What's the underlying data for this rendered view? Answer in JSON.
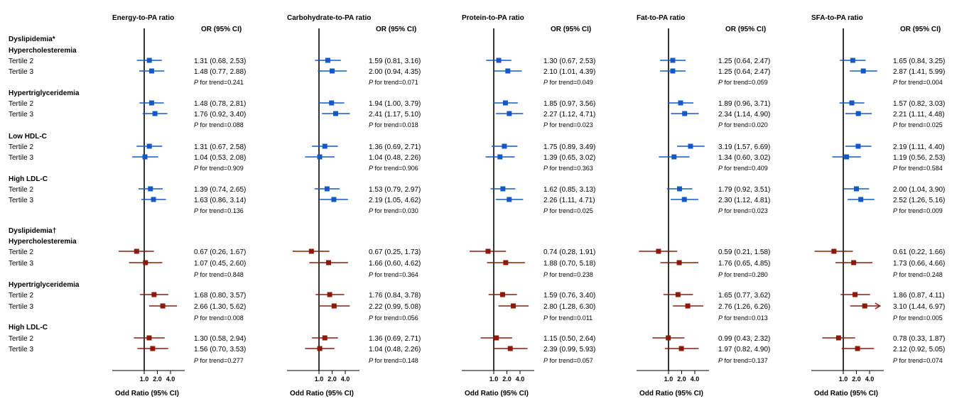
{
  "chart_data": {
    "type": "forest",
    "x_scale": "log2",
    "x_ticks": [
      "1.0",
      "2.0",
      "4.0"
    ],
    "xlabel": "Odd Ratio (95% CI)",
    "ci_column_header": "OR (95% CI)",
    "colors": {
      "model1": "#1458c8",
      "model2": "#8b1a0a"
    },
    "sections": [
      {
        "label": "Dyslipidemia*",
        "model": "model1",
        "subgroups": [
          {
            "label": "Hypercholesteremia"
          },
          {
            "label": "Hypertriglyceridemia"
          },
          {
            "label": "Low HDL-C"
          },
          {
            "label": "High LDL-C"
          }
        ]
      },
      {
        "label": "Dyslipidemia†",
        "model": "model2",
        "subgroups": [
          {
            "label": "Hypercholesteremia"
          },
          {
            "label": "Hypertriglyceridemia"
          },
          {
            "label": "High LDL-C"
          }
        ]
      }
    ],
    "row_labels": [
      "Tertile 2",
      "Tertile 3"
    ],
    "p_label": "P",
    "p_suffix": " for trend=",
    "panels": [
      {
        "title": "Energy-to-PA ratio",
        "data": [
          [
            [
              1.31,
              0.68,
              2.53
            ],
            [
              1.48,
              0.77,
              2.88
            ],
            "0.241"
          ],
          [
            [
              1.48,
              0.78,
              2.81
            ],
            [
              1.76,
              0.92,
              3.4
            ],
            "0.088"
          ],
          [
            [
              1.31,
              0.67,
              2.58
            ],
            [
              1.04,
              0.53,
              2.08
            ],
            "0.909"
          ],
          [
            [
              1.39,
              0.74,
              2.65
            ],
            [
              1.63,
              0.86,
              3.14
            ],
            "0.136"
          ],
          [
            [
              0.67,
              0.26,
              1.67
            ],
            [
              1.07,
              0.45,
              2.6
            ],
            "0.848"
          ],
          [
            [
              1.68,
              0.8,
              3.57
            ],
            [
              2.66,
              1.3,
              5.62
            ],
            "0.008"
          ],
          [
            [
              1.3,
              0.58,
              2.94
            ],
            [
              1.56,
              0.7,
              3.53
            ],
            "0.277"
          ]
        ]
      },
      {
        "title": "Carbohydrate-to-PA ratio",
        "data": [
          [
            [
              1.59,
              0.81,
              3.16
            ],
            [
              2.0,
              0.94,
              4.35
            ],
            "0.071"
          ],
          [
            [
              1.94,
              1.0,
              3.79
            ],
            [
              2.41,
              1.17,
              5.1
            ],
            "0.018"
          ],
          [
            [
              1.36,
              0.69,
              2.71
            ],
            [
              1.04,
              0.48,
              2.26
            ],
            "0.906"
          ],
          [
            [
              1.53,
              0.79,
              2.97
            ],
            [
              2.19,
              1.05,
              4.62
            ],
            "0.030"
          ],
          [
            [
              0.67,
              0.25,
              1.73
            ],
            [
              1.66,
              0.6,
              4.62
            ],
            "0.364"
          ],
          [
            [
              1.76,
              0.84,
              3.78
            ],
            [
              2.22,
              0.99,
              5.08
            ],
            "0.056"
          ],
          [
            [
              1.36,
              0.69,
              2.71
            ],
            [
              1.04,
              0.48,
              2.26
            ],
            "0.148"
          ]
        ]
      },
      {
        "title": "Protein-to-PA ratio",
        "data": [
          [
            [
              1.3,
              0.67,
              2.53
            ],
            [
              2.1,
              1.01,
              4.39
            ],
            "0.049"
          ],
          [
            [
              1.85,
              0.97,
              3.56
            ],
            [
              2.27,
              1.12,
              4.71
            ],
            "0.023"
          ],
          [
            [
              1.75,
              0.89,
              3.49
            ],
            [
              1.39,
              0.65,
              3.02
            ],
            "0.363"
          ],
          [
            [
              1.62,
              0.85,
              3.13
            ],
            [
              2.26,
              1.11,
              4.71
            ],
            "0.025"
          ],
          [
            [
              0.74,
              0.28,
              1.91
            ],
            [
              1.88,
              0.7,
              5.18
            ],
            "0.238"
          ],
          [
            [
              1.59,
              0.76,
              3.4
            ],
            [
              2.8,
              1.28,
              6.3
            ],
            "0.011"
          ],
          [
            [
              1.15,
              0.5,
              2.64
            ],
            [
              2.39,
              0.99,
              5.93
            ],
            "0.057"
          ]
        ]
      },
      {
        "title": "Fat-to-PA ratio",
        "data": [
          [
            [
              1.25,
              0.64,
              2.47
            ],
            [
              1.25,
              0.64,
              2.47
            ],
            "0.059"
          ],
          [
            [
              1.89,
              0.96,
              3.71
            ],
            [
              2.34,
              1.14,
              4.9
            ],
            "0.020"
          ],
          [
            [
              3.19,
              1.57,
              6.69
            ],
            [
              1.34,
              0.6,
              3.02
            ],
            "0.409"
          ],
          [
            [
              1.79,
              0.92,
              3.51
            ],
            [
              2.3,
              1.12,
              4.81
            ],
            "0.023"
          ],
          [
            [
              0.59,
              0.21,
              1.58
            ],
            [
              1.76,
              0.65,
              4.85
            ],
            "0.280"
          ],
          [
            [
              1.65,
              0.77,
              3.62
            ],
            [
              2.76,
              1.26,
              6.26
            ],
            "0.013"
          ],
          [
            [
              0.99,
              0.43,
              2.32
            ],
            [
              1.97,
              0.82,
              4.9
            ],
            "0.137"
          ]
        ]
      },
      {
        "title": "SFA-to-PA ratio",
        "data": [
          [
            [
              1.65,
              0.84,
              3.25
            ],
            [
              2.87,
              1.41,
              5.99
            ],
            "0.004"
          ],
          [
            [
              1.57,
              0.82,
              3.03
            ],
            [
              2.21,
              1.11,
              4.48
            ],
            "0.025"
          ],
          [
            [
              2.19,
              1.11,
              4.4
            ],
            [
              1.19,
              0.56,
              2.53
            ],
            "0.584"
          ],
          [
            [
              2.0,
              1.04,
              3.9
            ],
            [
              2.52,
              1.26,
              5.16
            ],
            "0.009"
          ],
          [
            [
              0.61,
              0.22,
              1.66
            ],
            [
              1.73,
              0.66,
              4.66
            ],
            "0.248"
          ],
          [
            [
              1.86,
              0.87,
              4.11
            ],
            [
              3.1,
              1.44,
              6.97
            ],
            "0.005"
          ],
          [
            [
              0.78,
              0.33,
              1.87
            ],
            [
              2.12,
              0.92,
              5.05
            ],
            "0.074"
          ]
        ]
      }
    ]
  }
}
